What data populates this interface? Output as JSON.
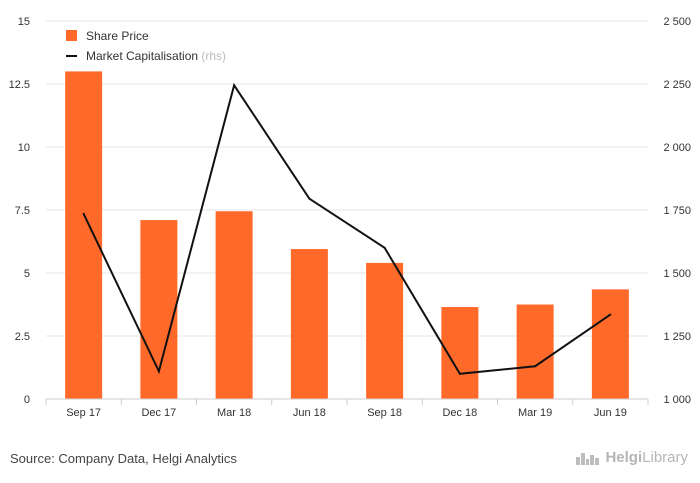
{
  "chart_data": {
    "type": "bar",
    "categories": [
      "Sep 17",
      "Dec 17",
      "Mar 18",
      "Jun 18",
      "Sep 18",
      "Dec 18",
      "Mar 19",
      "Jun 19"
    ],
    "series": [
      {
        "name": "Share Price",
        "kind": "bar",
        "axis": "left",
        "color": "#ff6a2a",
        "values": [
          13.0,
          7.1,
          7.45,
          5.95,
          5.4,
          3.65,
          3.75,
          4.35
        ]
      },
      {
        "name": "Market Capitalisation",
        "suffix": "(rhs)",
        "kind": "line",
        "axis": "right",
        "color": "#111111",
        "values": [
          1735,
          1110,
          2245,
          1795,
          1600,
          1100,
          1130,
          1335
        ]
      }
    ],
    "y_left": {
      "ticks": [
        "0",
        "2.5",
        "5",
        "7.5",
        "10",
        "12.5",
        "15"
      ],
      "range": [
        0,
        15
      ]
    },
    "y_right": {
      "ticks": [
        "1 000",
        "1 250",
        "1 500",
        "1 750",
        "2 000",
        "2 250",
        "2 500"
      ],
      "range": [
        1000,
        2500
      ]
    },
    "grid": true,
    "legend_position": "top-left"
  },
  "footer": {
    "source": "Source: Company Data, Helgi Analytics",
    "brand_prefix": "Helgi",
    "brand_suffix": "Library",
    "brand_icon": "city-skyline-icon"
  }
}
